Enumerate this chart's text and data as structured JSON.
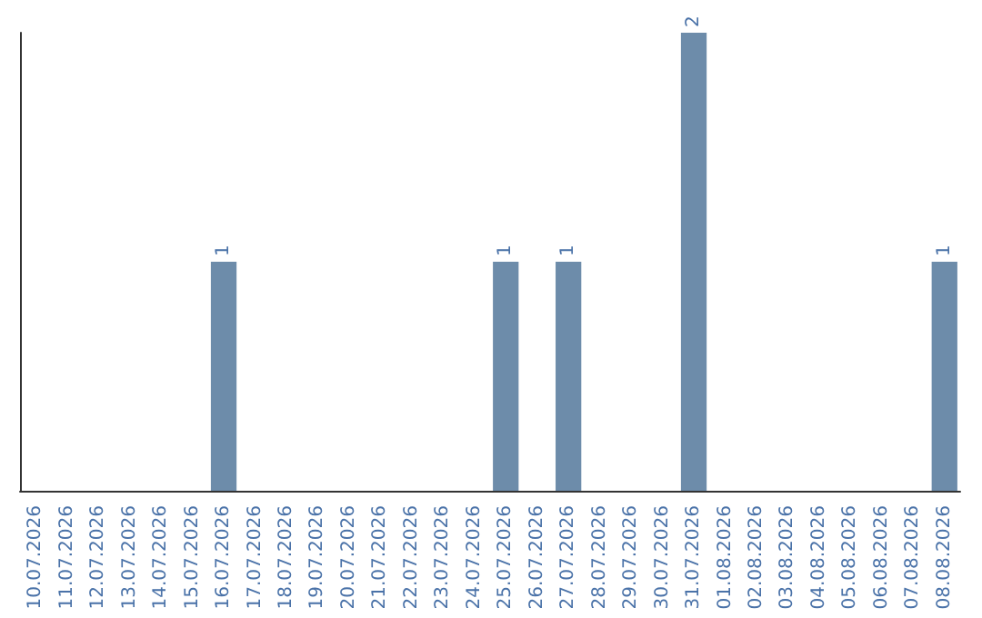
{
  "chart_data": {
    "type": "bar",
    "categories": [
      "10.07.2026",
      "11.07.2026",
      "12.07.2026",
      "13.07.2026",
      "14.07.2026",
      "15.07.2026",
      "16.07.2026",
      "17.07.2026",
      "18.07.2026",
      "19.07.2026",
      "20.07.2026",
      "21.07.2026",
      "22.07.2026",
      "23.07.2026",
      "24.07.2026",
      "25.07.2026",
      "26.07.2026",
      "27.07.2026",
      "28.07.2026",
      "29.07.2026",
      "30.07.2026",
      "31.07.2026",
      "01.08.2026",
      "02.08.2026",
      "03.08.2026",
      "04.08.2026",
      "05.08.2026",
      "06.08.2026",
      "07.08.2026",
      "08.08.2026"
    ],
    "values": [
      0,
      0,
      0,
      0,
      0,
      0,
      1,
      0,
      0,
      0,
      0,
      0,
      0,
      0,
      0,
      1,
      0,
      1,
      0,
      0,
      0,
      2,
      0,
      0,
      0,
      0,
      0,
      0,
      0,
      1
    ],
    "value_labels": [
      null,
      null,
      null,
      null,
      null,
      null,
      "1",
      null,
      null,
      null,
      null,
      null,
      null,
      null,
      null,
      "1",
      null,
      "1",
      null,
      null,
      null,
      "2",
      null,
      null,
      null,
      null,
      null,
      null,
      null,
      "1"
    ],
    "color": "#6d8caa"
  }
}
